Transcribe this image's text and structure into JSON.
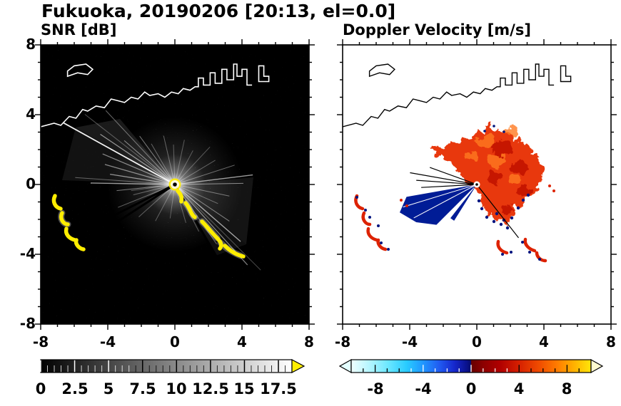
{
  "title": "Fukuoka, 20190206 [20:13, el=0.0]",
  "panels": [
    {
      "title": "SNR [dB]",
      "x_ticks": [
        "-8",
        "-4",
        "0",
        "4",
        "8"
      ],
      "y_ticks": [
        "8",
        "4",
        "0",
        "-4",
        "-8"
      ],
      "colorbar_labels": [
        "0",
        "2.5",
        "5",
        "7.5",
        "10",
        "12.5",
        "15",
        "17.5"
      ]
    },
    {
      "title": "Doppler Velocity [m/s]",
      "x_ticks": [
        "-8",
        "-4",
        "0",
        "4",
        "8"
      ],
      "colorbar_labels": [
        "-8",
        "-4",
        "0",
        "4",
        "8"
      ]
    }
  ],
  "colors": {
    "snr_background": "#000000",
    "snr_beam": "#ffffff",
    "clutter_yellow": "#ffee00",
    "coastline_snr": "#ffffff",
    "coastline_doppler": "#000000",
    "velocity_positive": "#e8380d",
    "velocity_negative": "#001c96",
    "colorbar_over_snr": "#ffee00",
    "colorbar_under_vel": "#e4ffff",
    "colorbar_over_vel": "#fffbd0"
  },
  "chart_data": [
    {
      "type": "heatmap",
      "title": "SNR [dB]",
      "xlabel": "",
      "ylabel": "",
      "xlim": [
        -8,
        8
      ],
      "ylim": [
        -8,
        8
      ],
      "x_ticks": [
        -8,
        -4,
        0,
        4,
        8
      ],
      "y_ticks": [
        -8,
        -4,
        0,
        4,
        8
      ],
      "grid": false,
      "colorbar": {
        "orientation": "horizontal",
        "range_shown": [
          0,
          17.5
        ],
        "tick_labels": [
          0,
          2.5,
          5,
          7.5,
          10,
          12.5,
          15,
          17.5
        ],
        "colormap": "black-to-white grayscale",
        "over_arrow_color": "#ffee00"
      },
      "radar_origin": [
        0,
        0
      ],
      "features": [
        {
          "name": "radial-beams",
          "description": "white SNR beams radiating from radar at origin, brightest toward upper-left, right and lower-right",
          "approx_radius": 6
        },
        {
          "name": "ground-clutter-west",
          "description": "high-SNR yellow arcs near western shore",
          "approx_points": [
            [
              -7.0,
              -0.9
            ],
            [
              -6.6,
              -1.7
            ],
            [
              -6.4,
              -2.5
            ],
            [
              -6.0,
              -3.1
            ],
            [
              -5.6,
              -3.5
            ]
          ]
        },
        {
          "name": "ground-clutter-southeast",
          "description": "yellow clutter chain from origin toward southeast",
          "approx_points": [
            [
              0.2,
              -0.5
            ],
            [
              1.0,
              -1.7
            ],
            [
              2.3,
              -2.9
            ],
            [
              3.6,
              -4.0
            ],
            [
              4.2,
              -4.2
            ]
          ]
        },
        {
          "name": "coastline",
          "description": "white coastline outline with harbor structures across northern part of domain"
        }
      ]
    },
    {
      "type": "heatmap",
      "title": "Doppler Velocity [m/s]",
      "xlabel": "",
      "ylabel": "",
      "xlim": [
        -8,
        8
      ],
      "ylim": [
        -8,
        8
      ],
      "x_ticks": [
        -8,
        -4,
        0,
        4,
        8
      ],
      "y_ticks": [
        -8,
        -4,
        0,
        4,
        8
      ],
      "grid": false,
      "colorbar": {
        "orientation": "horizontal",
        "range_shown": [
          -10,
          10
        ],
        "tick_labels": [
          -8,
          -4,
          0,
          4,
          8
        ],
        "colormap": "diverging cyan-blue (negative) to dark-red-orange-yellow (positive)",
        "zero_break": true
      },
      "radar_origin": [
        0,
        0
      ],
      "features": [
        {
          "name": "positive-velocity-echo",
          "description": "red/orange fractal-edged echo region east-northeast of origin",
          "approx_extent": [
            [
              -2.8,
              -2.3
            ],
            [
              4.1,
              3.6
            ]
          ]
        },
        {
          "name": "negative-velocity-wedge",
          "description": "dark navy wedge extending west-southwest from origin",
          "approx_extent": [
            [
              -4.2,
              -2.3
            ],
            [
              0,
              0
            ]
          ]
        },
        {
          "name": "clutter-echoes-west",
          "description": "small red arcs with navy specks near western shore matching SNR clutter"
        },
        {
          "name": "coastline",
          "description": "black coastline outline with harbor structures across northern part of domain"
        }
      ]
    }
  ]
}
